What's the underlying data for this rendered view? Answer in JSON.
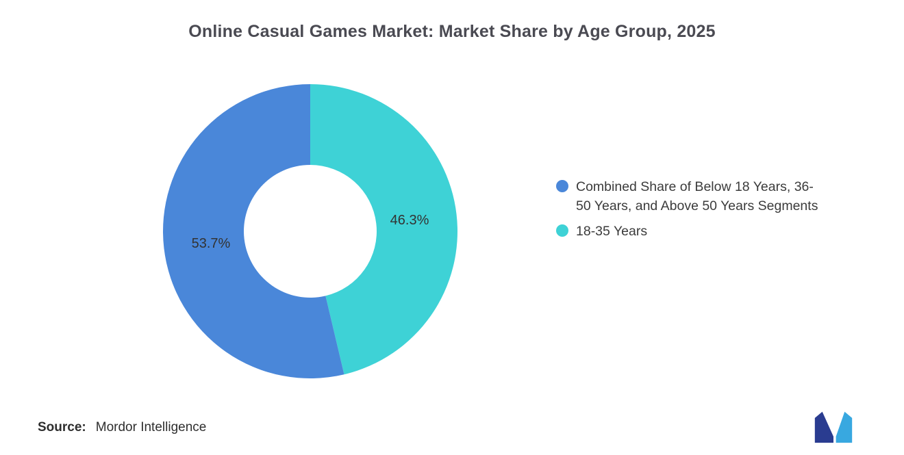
{
  "title": "Online Casual Games Market: Market Share by Age Group, 2025",
  "chart_data": {
    "type": "pie",
    "subtype": "donut",
    "title": "Online Casual Games Market: Market Share by Age Group, 2025",
    "slices": [
      {
        "label": "Combined Share of Below 18 Years, 36-50 Years, and Above 50 Years Segments",
        "value": 53.7,
        "display": "53.7%",
        "color": "#4A87D9"
      },
      {
        "label": "18-35 Years",
        "value": 46.3,
        "display": "46.3%",
        "color": "#3ED2D6"
      }
    ],
    "start_angle_deg": -90,
    "draw_order": [
      1,
      0
    ],
    "inner_radius_ratio": 0.45,
    "legend_position": "right",
    "background": "#ffffff"
  },
  "source": {
    "prefix": "Source:",
    "text": "Mordor Intelligence"
  },
  "logo": {
    "name": "mordor-intelligence-logo",
    "dark_color": "#2A3C90",
    "light_color": "#38A8E0"
  }
}
